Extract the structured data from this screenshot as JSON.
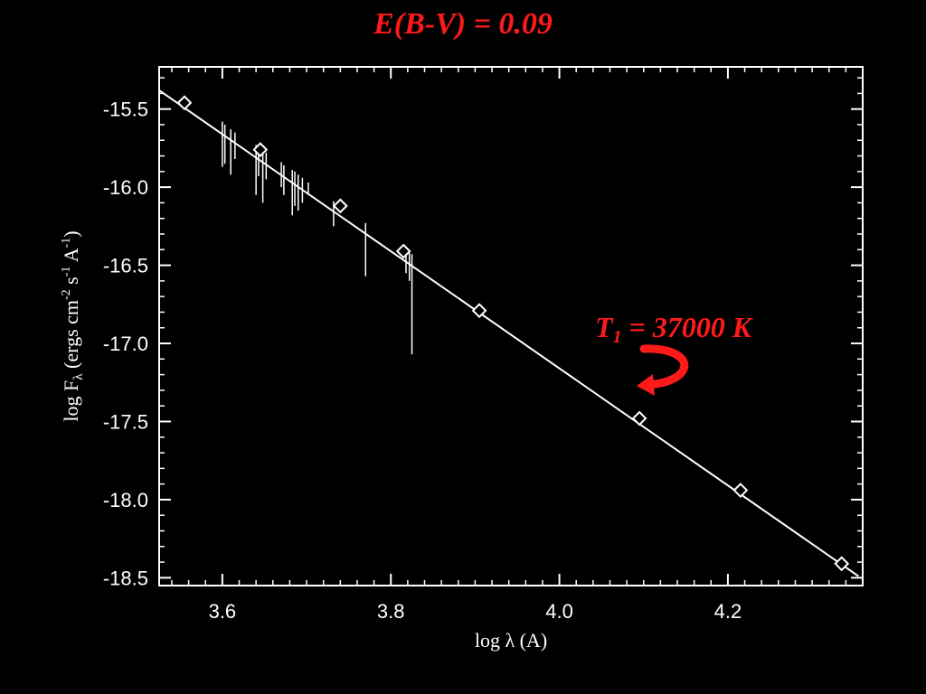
{
  "title": "E(B-V) = 0.09",
  "annotation": {
    "prefix": "T",
    "subscript": "1",
    "suffix": " = 37000 K",
    "color": "#ff1a1a"
  },
  "colors": {
    "background": "#000000",
    "foreground": "#ffffff",
    "accent": "#ff1a1a"
  },
  "chart_data": {
    "type": "line",
    "title": "E(B-V) = 0.09",
    "xlabel": "log λ (A)",
    "ylabel": "log F_λ (ergs cm^-2 s^-1 A^-1)",
    "xlim": [
      3.525,
      4.36
    ],
    "ylim": [
      -18.55,
      -15.23
    ],
    "xticks": [
      "3.6",
      "3.8",
      "4.0",
      "4.2"
    ],
    "xtick_values": [
      3.6,
      3.8,
      4.0,
      4.2
    ],
    "yticks": [
      "-15.5",
      "-16.0",
      "-16.5",
      "-17.0",
      "-17.5",
      "-18.0",
      "-18.5"
    ],
    "ytick_values": [
      -15.5,
      -16.0,
      -16.5,
      -17.0,
      -17.5,
      -18.0,
      -18.5
    ],
    "grid": false,
    "series": [
      {
        "style": "line",
        "x": [
          3.525,
          4.355
        ],
        "y": [
          -15.38,
          -18.49
        ]
      },
      {
        "style": "diamond-markers",
        "x": [
          3.555,
          3.645,
          3.74,
          3.815,
          3.905,
          4.095,
          4.215,
          4.335
        ],
        "y": [
          -15.46,
          -15.76,
          -16.12,
          -16.41,
          -16.79,
          -17.48,
          -17.94,
          -18.41
        ]
      },
      {
        "style": "absorption-lines",
        "x": [
          3.6,
          3.603,
          3.61,
          3.615,
          3.64,
          3.643,
          3.648,
          3.652,
          3.67,
          3.673,
          3.683,
          3.686,
          3.69,
          3.695,
          3.702,
          3.732,
          3.77,
          3.818,
          3.822,
          3.825
        ],
        "y_top": [
          -15.58,
          -15.6,
          -15.63,
          -15.65,
          -15.73,
          -15.74,
          -15.76,
          -15.78,
          -15.84,
          -15.86,
          -15.89,
          -15.9,
          -15.92,
          -15.94,
          -15.97,
          -16.09,
          -16.23,
          -16.41,
          -16.42,
          -16.43
        ],
        "y_bottom": [
          -15.87,
          -15.85,
          -15.92,
          -15.82,
          -16.05,
          -15.93,
          -16.1,
          -15.95,
          -16.0,
          -16.05,
          -16.18,
          -16.12,
          -16.15,
          -16.1,
          -16.05,
          -16.25,
          -16.57,
          -16.55,
          -16.6,
          -17.07
        ]
      }
    ]
  }
}
